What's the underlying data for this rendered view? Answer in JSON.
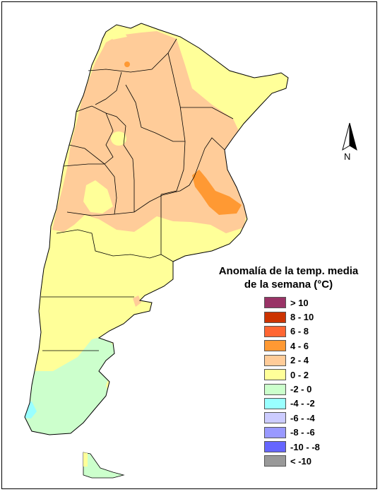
{
  "map": {
    "north_label": "N"
  },
  "legend": {
    "title_line1": "Anomalía de la temp. media",
    "title_line2": "de la semana (°C)",
    "items": [
      {
        "label": "> 10",
        "color": "#993366"
      },
      {
        "label": "8 - 10",
        "color": "#cc3300"
      },
      {
        "label": "6 - 8",
        "color": "#ff6633"
      },
      {
        "label": "4 - 6",
        "color": "#ff9933"
      },
      {
        "label": "2 - 4",
        "color": "#ffcc99"
      },
      {
        "label": "0 - 2",
        "color": "#ffff99"
      },
      {
        "label": "-2 - 0",
        "color": "#ccffcc"
      },
      {
        "label": "-4 - -2",
        "color": "#99ffff"
      },
      {
        "label": "-6 - -4",
        "color": "#ccccff"
      },
      {
        "label": "-8 - -6",
        "color": "#9999ff"
      },
      {
        "label": "-10 - -8",
        "color": "#6666ff"
      },
      {
        "label": "< -10",
        "color": "#999999"
      }
    ]
  }
}
